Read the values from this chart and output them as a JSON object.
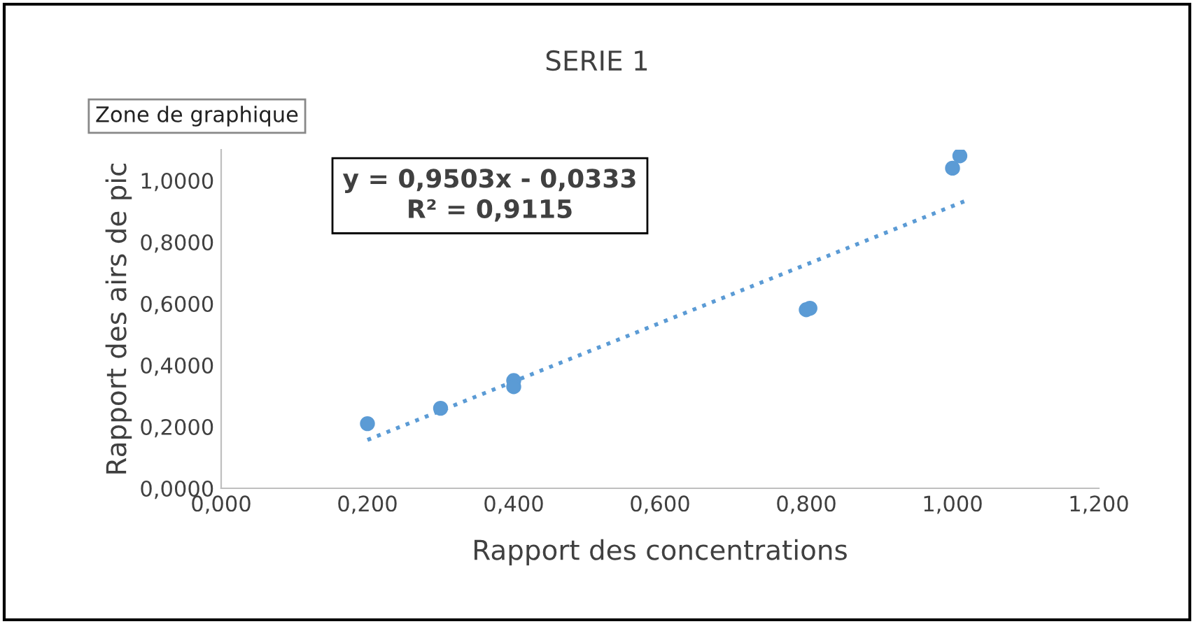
{
  "chart_data": {
    "type": "scatter",
    "title": "SERIE 1",
    "xlabel": "Rapport des concentrations",
    "ylabel": "Rapport des airs de pic",
    "xlim": [
      0,
      1.2
    ],
    "ylim": [
      0,
      1.1
    ],
    "xticks": [
      {
        "value": 0,
        "label": "0,000"
      },
      {
        "value": 0.2,
        "label": "0,200"
      },
      {
        "value": 0.4,
        "label": "0,400"
      },
      {
        "value": 0.6,
        "label": "0,600"
      },
      {
        "value": 0.8,
        "label": "0,800"
      },
      {
        "value": 1.0,
        "label": "1,000"
      },
      {
        "value": 1.2,
        "label": "1,200"
      }
    ],
    "yticks": [
      {
        "value": 0,
        "label": "0,0000"
      },
      {
        "value": 0.2,
        "label": "0,2000"
      },
      {
        "value": 0.4,
        "label": "0,4000"
      },
      {
        "value": 0.6,
        "label": "0,6000"
      },
      {
        "value": 0.8,
        "label": "0,8000"
      },
      {
        "value": 1.0,
        "label": "1,0000"
      }
    ],
    "grid": false,
    "series": [
      {
        "marker": "circle",
        "color": "#5b9bd5",
        "x": [
          0.2,
          0.3,
          0.4,
          0.4,
          0.8,
          0.805,
          1.0,
          1.01
        ],
        "values": [
          0.21,
          0.26,
          0.35,
          0.33,
          0.58,
          0.585,
          1.04,
          1.08
        ]
      },
      {
        "type": "line",
        "marker": "none",
        "color": "#5b9bd5",
        "line_style": "dotted",
        "x": [
          0.2,
          1.02
        ],
        "values": [
          0.157,
          0.936
        ]
      }
    ],
    "annotations": [
      "Zone de graphique",
      "y = 0,9503x - 0,0333\nR² = 0,9115"
    ]
  }
}
